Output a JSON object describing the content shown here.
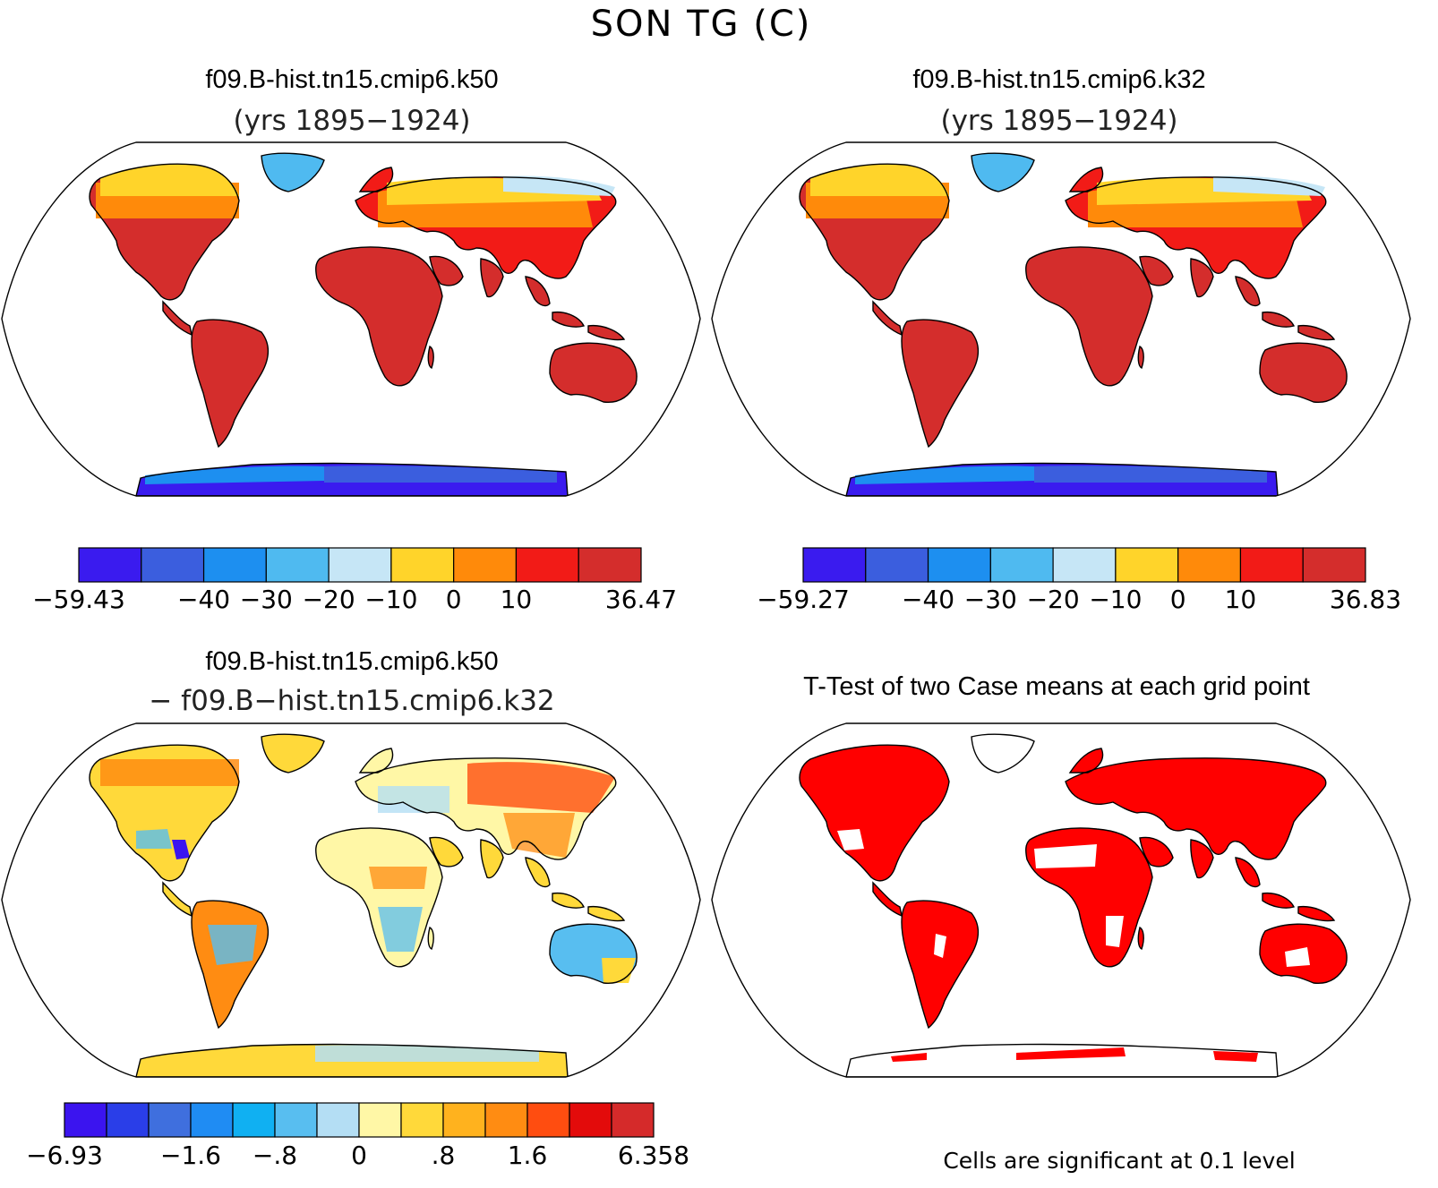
{
  "figure": {
    "main_title": "SON TG (C)"
  },
  "panels": [
    {
      "id": "k50",
      "title": "f09.B-hist.tn15.cmip6.k50",
      "subtitle": "(yrs 1895−1924)",
      "type": "climatology",
      "colorbar": {
        "colors": [
          "#3a1bef",
          "#3b5ede",
          "#1d8ff0",
          "#4fbaf0",
          "#c6e6f6",
          "#ffd42a",
          "#ff8a0a",
          "#f21b17",
          "#d42d2c"
        ],
        "labels": [
          "−59.43",
          "−40",
          "−30",
          "−20",
          "−10",
          "0",
          "10",
          "36.47"
        ],
        "label_bounds": [
          0,
          2,
          3,
          4,
          5,
          6,
          7,
          9
        ]
      }
    },
    {
      "id": "k32",
      "title": "f09.B-hist.tn15.cmip6.k32",
      "subtitle": "(yrs 1895−1924)",
      "type": "climatology",
      "colorbar": {
        "colors": [
          "#3a1bef",
          "#3b5ede",
          "#1d8ff0",
          "#4fbaf0",
          "#c6e6f6",
          "#ffd42a",
          "#ff8a0a",
          "#f21b17",
          "#d42d2c"
        ],
        "labels": [
          "−59.27",
          "−40",
          "−30",
          "−20",
          "−10",
          "0",
          "10",
          "36.83"
        ],
        "label_bounds": [
          0,
          2,
          3,
          4,
          5,
          6,
          7,
          9
        ]
      }
    },
    {
      "id": "diff",
      "title": "f09.B-hist.tn15.cmip6.k50",
      "subtitle": "− f09.B−hist.tn15.cmip6.k32",
      "type": "difference",
      "colorbar": {
        "colors": [
          "#3b14ef",
          "#2a3ee8",
          "#3f6fde",
          "#1f8cf3",
          "#10b0f2",
          "#58bef0",
          "#b4def4",
          "#fff7a6",
          "#ffd93a",
          "#ffb21e",
          "#ff8c12",
          "#ff4d10",
          "#e30b0b",
          "#d52a2a"
        ],
        "labels": [
          "−6.93",
          "−1.6",
          "−.8",
          "0",
          ".8",
          "1.6",
          "6.358"
        ],
        "label_bounds": [
          0,
          3,
          5,
          7,
          9,
          11,
          14
        ]
      }
    },
    {
      "id": "ttest",
      "title": "T-Test of two Case means at each grid point",
      "type": "significance",
      "note": "Cells are significant at 0.1 level"
    }
  ]
}
